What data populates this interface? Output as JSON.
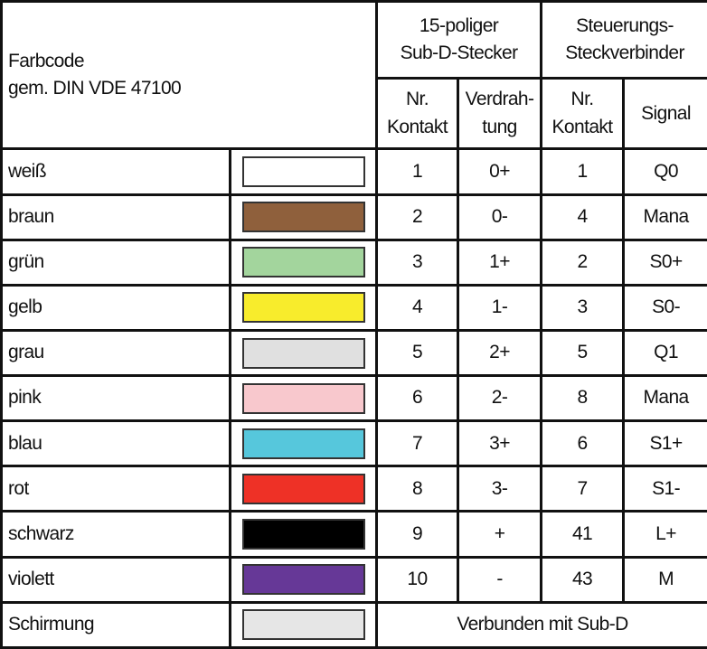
{
  "header": {
    "farbcode_line1": "Farbcode",
    "farbcode_line2": "gem. DIN VDE 47100",
    "subd_line1": "15-poliger",
    "subd_line2": "Sub-D-Stecker",
    "steuer_line1": "Steuerungs-",
    "steuer_line2": "Steckverbinder",
    "nr1_line1": "Nr.",
    "nr1_line2": "Kontakt",
    "verd_line1": "Verdrah-",
    "verd_line2": "tung",
    "nr2_line1": "Nr.",
    "nr2_line2": "Kontakt",
    "signal": "Signal"
  },
  "rows": [
    {
      "name": "weiß",
      "color": "#FFFFFF",
      "subd": "1",
      "wiring": "0+",
      "contact": "1",
      "signal": "Q0"
    },
    {
      "name": "braun",
      "color": "#8F603C",
      "subd": "2",
      "wiring": "0-",
      "contact": "4",
      "signal": "Mana"
    },
    {
      "name": "grün",
      "color": "#A3D59D",
      "subd": "3",
      "wiring": "1+",
      "contact": "2",
      "signal": "S0+"
    },
    {
      "name": "gelb",
      "color": "#F8EC2C",
      "subd": "4",
      "wiring": "1-",
      "contact": "3",
      "signal": "S0-"
    },
    {
      "name": "grau",
      "color": "#E0E0E0",
      "subd": "5",
      "wiring": "2+",
      "contact": "5",
      "signal": "Q1"
    },
    {
      "name": "pink",
      "color": "#F8C8CD",
      "subd": "6",
      "wiring": "2-",
      "contact": "8",
      "signal": "Mana"
    },
    {
      "name": "blau",
      "color": "#56C7DC",
      "subd": "7",
      "wiring": "3+",
      "contact": "6",
      "signal": "S1+"
    },
    {
      "name": "rot",
      "color": "#EE3126",
      "subd": "8",
      "wiring": "3-",
      "contact": "7",
      "signal": "S1-"
    },
    {
      "name": "schwarz",
      "color": "#000000",
      "subd": "9",
      "wiring": "+",
      "contact": "41",
      "signal": "L+"
    },
    {
      "name": "violett",
      "color": "#663897",
      "subd": "10",
      "wiring": "-",
      "contact": "43",
      "signal": "M"
    }
  ],
  "shield": {
    "name": "Schirmung",
    "color": "#E6E6E6",
    "note": "Verbunden mit Sub-D"
  }
}
